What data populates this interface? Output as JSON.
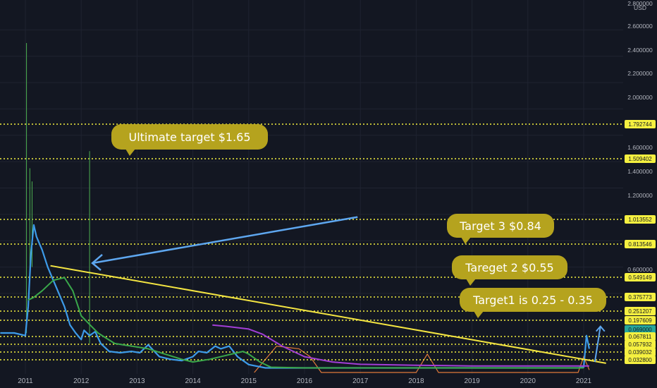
{
  "currency_label": "USD",
  "colors": {
    "background": "#131722",
    "grid": "#1f2330",
    "target_line": "#f5f040",
    "trend_line": "#f5e642",
    "arrow": "#5ea7f0",
    "price_line": "#3d9be9",
    "ma_green": "#3aa84b",
    "ma_purple": "#a23ed6",
    "volume": "#e07a3a",
    "callout": "#b5a31e",
    "tag_yellow": "#f5f040",
    "tag_current": "#26a69a"
  },
  "chart_data": {
    "type": "line",
    "y_scale": "linear",
    "ylim": [
      0,
      2.8
    ],
    "xlim": [
      2010.55,
      2021.6
    ],
    "grid": true,
    "y_ticks": [
      "2.800000",
      "2.600000",
      "2.400000",
      "2.200000",
      "2.000000",
      "1.600000",
      "1.400000",
      "1.200000",
      "0.600000"
    ],
    "x_ticks": [
      "2011",
      "2012",
      "2013",
      "2014",
      "2015",
      "2016",
      "2017",
      "2018",
      "2019",
      "2020",
      "2021"
    ],
    "price_tags": [
      {
        "label": "1.792744",
        "value": 1.792744,
        "dotted_line": true
      },
      {
        "label": "1.509402",
        "value": 1.509402,
        "dotted_line": true
      },
      {
        "label": "1.013552",
        "value": 1.013552,
        "dotted_line": true
      },
      {
        "label": "0.813546",
        "value": 0.813546,
        "dotted_line": true
      },
      {
        "label": "0.549149",
        "value": 0.549149,
        "dotted_line": true
      },
      {
        "label": "0.375773",
        "value": 0.375773,
        "dotted_line": true
      },
      {
        "label": "0.251207",
        "value": 0.251207,
        "dotted_line": true
      },
      {
        "label": "0.197609",
        "value": 0.197609,
        "dotted_line": true
      },
      {
        "label": "0.069000",
        "value": 0.069,
        "dotted_line": false,
        "current": true
      },
      {
        "label": "0.067811",
        "value": 0.067811,
        "dotted_line": true
      },
      {
        "label": "0.057932",
        "value": 0.057932,
        "dotted_line": true
      },
      {
        "label": "0.039032",
        "value": 0.039032,
        "dotted_line": true
      },
      {
        "label": "0.032800",
        "value": 0.0328,
        "dotted_line": true
      }
    ],
    "series": [
      {
        "kind": "price",
        "x": [
          2010.55,
          2010.8,
          2011.0,
          2011.05,
          2011.1,
          2011.15,
          2011.2,
          2011.3,
          2011.4,
          2011.5,
          2011.6,
          2011.7,
          2011.8,
          2011.9,
          2012.0,
          2012.05,
          2012.15,
          2012.25,
          2012.35,
          2012.5,
          2012.7,
          2012.9,
          2013.05,
          2013.2,
          2013.4,
          2013.6,
          2013.8,
          2014.0,
          2014.1,
          2014.25,
          2014.4,
          2014.5,
          2014.65,
          2014.8,
          2015.0,
          2015.3,
          2016.0,
          2017.0,
          2018.0,
          2019.0,
          2020.0,
          2020.9,
          2021.0,
          2021.05,
          2021.1
        ],
        "y": [
          0.3,
          0.3,
          0.28,
          0.5,
          0.9,
          1.12,
          1.03,
          0.93,
          0.8,
          0.7,
          0.6,
          0.5,
          0.36,
          0.3,
          0.25,
          0.32,
          0.28,
          0.31,
          0.22,
          0.16,
          0.15,
          0.16,
          0.15,
          0.21,
          0.12,
          0.1,
          0.09,
          0.12,
          0.16,
          0.15,
          0.2,
          0.18,
          0.2,
          0.12,
          0.06,
          0.035,
          0.035,
          0.035,
          0.035,
          0.035,
          0.035,
          0.035,
          0.04,
          0.28,
          0.18
        ]
      },
      {
        "kind": "ma_green",
        "x": [
          2011.05,
          2011.15,
          2011.3,
          2011.5,
          2011.7,
          2011.85,
          2012.0,
          2012.3,
          2012.6,
          2012.9,
          2013.2,
          2013.5,
          2013.8,
          2014.0,
          2014.3,
          2014.6,
          2014.9,
          2015.0,
          2015.2,
          2015.4,
          2016.0,
          2017.0,
          2018.0,
          2019.0,
          2020.0,
          2021.0
        ],
        "y": [
          0.55,
          0.57,
          0.62,
          0.7,
          0.72,
          0.62,
          0.43,
          0.3,
          0.22,
          0.2,
          0.18,
          0.14,
          0.1,
          0.08,
          0.1,
          0.13,
          0.16,
          0.14,
          0.08,
          0.04,
          0.035,
          0.035,
          0.035,
          0.035,
          0.035,
          0.035
        ]
      },
      {
        "kind": "ma_purple",
        "x": [
          2014.35,
          2014.6,
          2015.0,
          2015.25,
          2015.6,
          2016.0,
          2016.5,
          2017.0,
          2018.0,
          2019.0,
          2020.0,
          2021.1
        ],
        "y": [
          0.36,
          0.35,
          0.33,
          0.29,
          0.2,
          0.12,
          0.08,
          0.062,
          0.055,
          0.05,
          0.05,
          0.05
        ]
      },
      {
        "kind": "trend_line",
        "x": [
          2011.45,
          2021.4
        ],
        "y": [
          0.81,
          0.07
        ]
      }
    ],
    "candle_spikes": [
      {
        "x": 2011.02,
        "low": 0.3,
        "high": 2.5
      },
      {
        "x": 2012.15,
        "low": 0.22,
        "high": 1.68
      },
      {
        "x": 2011.08,
        "low": 0.7,
        "high": 1.55
      },
      {
        "x": 2011.12,
        "low": 0.8,
        "high": 1.45
      }
    ],
    "volume_profile": {
      "x": [
        2015.1,
        2015.3,
        2015.5,
        2015.7,
        2015.9,
        2016.1,
        2016.3,
        2018.0,
        2018.2,
        2018.4,
        2020.9,
        2021.0,
        2021.1
      ],
      "y": [
        0.0,
        0.1,
        0.2,
        0.19,
        0.18,
        0.12,
        0.0,
        0.0,
        0.14,
        0.0,
        0.0,
        0.12,
        0.02
      ]
    },
    "arrow": {
      "from": {
        "x": 2016.95,
        "y": 1.18
      },
      "to": {
        "x": 2012.2,
        "y": 0.83
      }
    },
    "up_arrow": {
      "from": {
        "x": 2021.2,
        "y": 0.08
      },
      "to": {
        "x": 2021.3,
        "y": 0.35
      }
    },
    "annotations": [
      {
        "text": "Ultimate target $1.65",
        "x": 2012.6,
        "y": 1.65
      },
      {
        "text": "Target 3 $0.84",
        "x": 2018.6,
        "y": 0.9
      },
      {
        "text": "Tareget 2 $0.55",
        "x": 2018.7,
        "y": 0.62
      },
      {
        "text": "Target1 is 0.25 - 0.35",
        "x": 2018.4,
        "y": 0.33
      }
    ]
  }
}
